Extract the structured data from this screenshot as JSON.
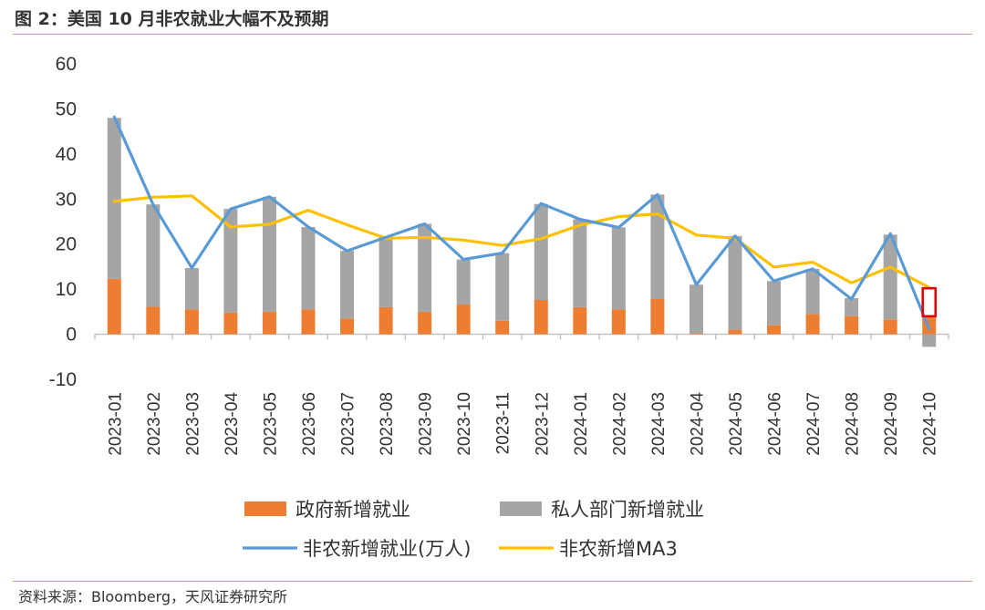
{
  "header": {
    "title": "图 2：美国 10 月非农就业大幅不及预期"
  },
  "footer": {
    "source": "资料来源：Bloomberg，天风证券研究所"
  },
  "colors": {
    "gov": "#ed7d31",
    "private": "#a5a5a5",
    "nfp": "#5b9bd5",
    "ma3": "#ffc000",
    "highlight": "#e00000"
  },
  "chart_data": {
    "type": "bar",
    "categories": [
      "2023-01",
      "2023-02",
      "2023-03",
      "2023-04",
      "2023-05",
      "2023-06",
      "2023-07",
      "2023-08",
      "2023-09",
      "2023-10",
      "2023-11",
      "2023-12",
      "2024-01",
      "2024-02",
      "2024-03",
      "2024-04",
      "2024-05",
      "2024-06",
      "2024-07",
      "2024-08",
      "2024-09",
      "2024-10"
    ],
    "ylim": [
      -10,
      60
    ],
    "yticks": [
      -10,
      0,
      10,
      20,
      30,
      40,
      50,
      60
    ],
    "series": [
      {
        "name": "政府新增就业",
        "type": "bar",
        "values": [
          12.3,
          6.1,
          5.5,
          4.8,
          5.0,
          5.5,
          3.5,
          6.0,
          5.0,
          6.6,
          3.0,
          7.6,
          6.0,
          5.5,
          7.8,
          0.2,
          1.0,
          2.0,
          4.5,
          4.0,
          3.3,
          4.0
        ]
      },
      {
        "name": "私人部门新增就业",
        "type": "bar",
        "values": [
          35.7,
          22.7,
          9.2,
          23.0,
          25.5,
          18.3,
          15.0,
          15.5,
          19.5,
          10.0,
          15.0,
          21.3,
          19.5,
          18.2,
          23.2,
          10.8,
          20.8,
          9.8,
          10.0,
          4.0,
          18.8,
          -2.8
        ]
      },
      {
        "name": "非农新增就业(万人)",
        "type": "line",
        "values": [
          48.2,
          28.8,
          14.7,
          27.8,
          30.5,
          23.8,
          18.5,
          21.5,
          24.5,
          16.6,
          18.0,
          29.0,
          25.5,
          23.7,
          31.0,
          11.0,
          21.8,
          11.8,
          14.5,
          7.8,
          22.3,
          1.2
        ]
      },
      {
        "name": "非农新增MA3",
        "type": "line",
        "values": [
          29.5,
          30.4,
          30.7,
          23.8,
          24.4,
          27.5,
          24.3,
          21.3,
          21.5,
          20.9,
          19.7,
          21.2,
          24.2,
          26.1,
          26.7,
          22.0,
          21.3,
          14.9,
          16.0,
          11.4,
          14.9,
          10.4
        ]
      }
    ]
  }
}
